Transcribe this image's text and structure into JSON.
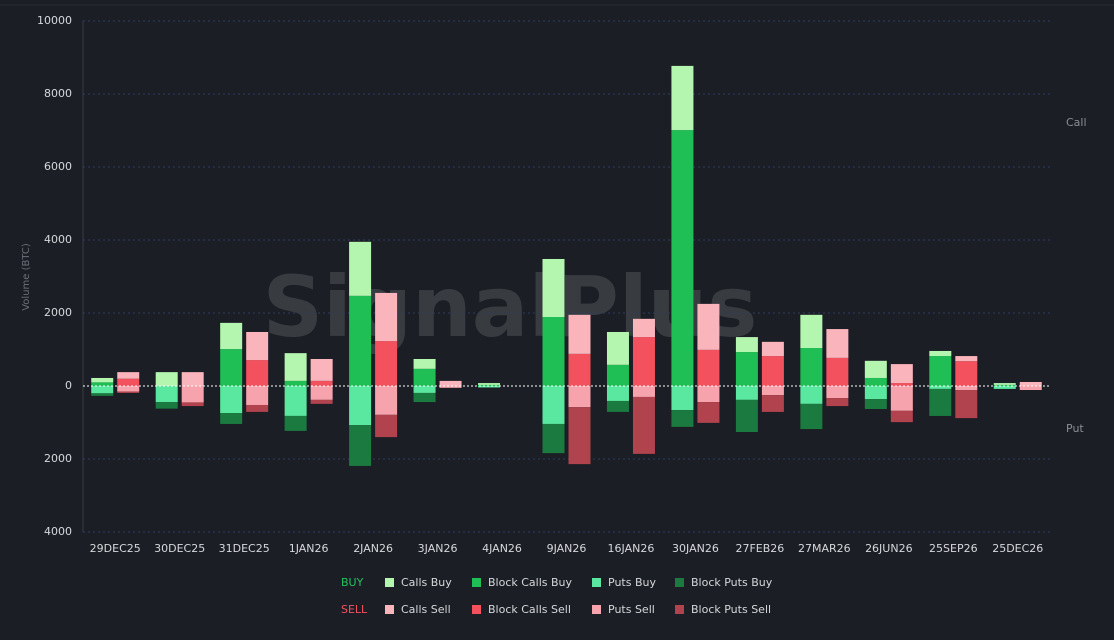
{
  "chart_data": {
    "type": "diverging_stacked_bar",
    "watermark": "SignalPlus",
    "y_label": "Volume (BTC)",
    "side_labels": [
      "Call",
      "Put"
    ],
    "categories": [
      "29DEC25",
      "30DEC25",
      "31DEC25",
      "1JAN26",
      "2JAN26",
      "3JAN26",
      "4JAN26",
      "9JAN26",
      "16JAN26",
      "30JAN26",
      "27FEB26",
      "27MAR26",
      "26JUN26",
      "25SEP26",
      "25DEC26"
    ],
    "ylim": [
      -4000,
      10000
    ],
    "yticks": [
      {
        "value": -4000,
        "label": "4000"
      },
      {
        "value": -2000,
        "label": "2000"
      },
      0,
      2000,
      4000,
      6000,
      8000,
      10000
    ],
    "grid": true,
    "groups": [
      {
        "name": "BUY",
        "color": "#22c55e",
        "series": [
          {
            "name": "Calls Buy",
            "color": "#b4f5b0",
            "values": [
              120,
              380,
              720,
              760,
              1480,
              270,
              50,
              1590,
              900,
              1760,
              410,
              910,
              470,
              140,
              50
            ]
          },
          {
            "name": "Block Calls Buy",
            "color": "#1fbf55",
            "values": [
              100,
              0,
              1010,
              140,
              2470,
              470,
              30,
              1890,
              580,
              7010,
              930,
              1040,
              220,
              820,
              30
            ]
          },
          {
            "name": "Puts Buy",
            "color": "#5ae8a0",
            "values": [
              -200,
              -440,
              -740,
              -820,
              -1070,
              -190,
              -40,
              -1040,
              -410,
              -660,
              -380,
              -490,
              -360,
              -80,
              -80
            ]
          },
          {
            "name": "Block Puts Buy",
            "color": "#1b7a40",
            "values": [
              -70,
              -180,
              -300,
              -410,
              -1120,
              -250,
              0,
              -800,
              -300,
              -460,
              -880,
              -690,
              -270,
              -740,
              0
            ]
          }
        ]
      },
      {
        "name": "SELL",
        "color": "#f4515e",
        "series": [
          {
            "name": "Calls Sell",
            "color": "#f9b4bc",
            "values": [
              180,
              380,
              770,
              600,
              1320,
              140,
              0,
              1070,
              500,
              1260,
              390,
              790,
              520,
              140,
              110
            ]
          },
          {
            "name": "Block Calls Sell",
            "color": "#f4515e",
            "values": [
              200,
              0,
              710,
              140,
              1230,
              0,
              0,
              880,
              1340,
              990,
              820,
              770,
              80,
              680,
              0
            ]
          },
          {
            "name": "Puts Sell",
            "color": "#f7a3ad",
            "values": [
              -150,
              -450,
              -520,
              -380,
              -790,
              -50,
              0,
              -580,
              -300,
              -440,
              -250,
              -330,
              -680,
              -110,
              -110
            ]
          },
          {
            "name": "Block Puts Sell",
            "color": "#b0434d",
            "values": [
              -40,
              -100,
              -190,
              -110,
              -610,
              0,
              0,
              -1560,
              -1560,
              -570,
              -460,
              -220,
              -310,
              -770,
              0
            ]
          }
        ]
      }
    ]
  }
}
